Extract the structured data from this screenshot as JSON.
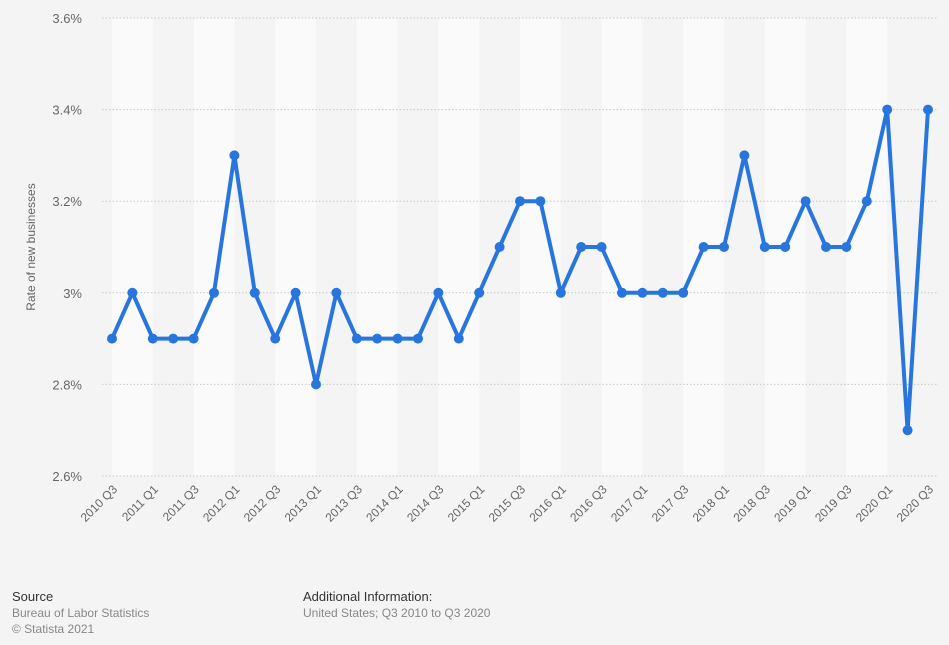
{
  "chart_data": {
    "type": "line",
    "title": "",
    "xlabel": "",
    "ylabel": "Rate of new businesses",
    "ylim": [
      2.6,
      3.6
    ],
    "yticks": [
      "2.6%",
      "2.8%",
      "3%",
      "3.2%",
      "3.4%",
      "3.6%"
    ],
    "ytick_values": [
      2.6,
      2.8,
      3.0,
      3.2,
      3.4,
      3.6
    ],
    "grid": true,
    "line_color": "#2876dd",
    "categories": [
      "2010 Q3",
      "2010 Q4",
      "2011 Q1",
      "2011 Q2",
      "2011 Q3",
      "2011 Q4",
      "2012 Q1",
      "2012 Q2",
      "2012 Q3",
      "2012 Q4",
      "2013 Q1",
      "2013 Q2",
      "2013 Q3",
      "2013 Q4",
      "2014 Q1",
      "2014 Q2",
      "2014 Q3",
      "2014 Q4",
      "2015 Q1",
      "2015 Q2",
      "2015 Q3",
      "2015 Q4",
      "2016 Q1",
      "2016 Q2",
      "2016 Q3",
      "2016 Q4",
      "2017 Q1",
      "2017 Q2",
      "2017 Q3",
      "2017 Q4",
      "2018 Q1",
      "2018 Q2",
      "2018 Q3",
      "2018 Q4",
      "2019 Q1",
      "2019 Q2",
      "2019 Q3",
      "2019 Q4",
      "2020 Q1",
      "2020 Q2",
      "2020 Q3"
    ],
    "series": [
      {
        "name": "Rate of new businesses",
        "values": [
          2.9,
          3.0,
          2.9,
          2.9,
          2.9,
          3.0,
          3.3,
          3.0,
          2.9,
          3.0,
          2.8,
          3.0,
          2.9,
          2.9,
          2.9,
          2.9,
          3.0,
          2.9,
          3.0,
          3.1,
          3.2,
          3.2,
          3.0,
          3.1,
          3.1,
          3.0,
          3.0,
          3.0,
          3.0,
          3.1,
          3.1,
          3.3,
          3.1,
          3.1,
          3.2,
          3.1,
          3.1,
          3.2,
          3.4,
          2.7,
          3.4
        ]
      }
    ]
  },
  "footer": {
    "source_heading": "Source",
    "source_text": "Bureau of Labor Statistics",
    "copyright": "© Statista 2021",
    "additional_heading": "Additional Information:",
    "additional_text": "United States; Q3 2010 to Q3 2020"
  }
}
